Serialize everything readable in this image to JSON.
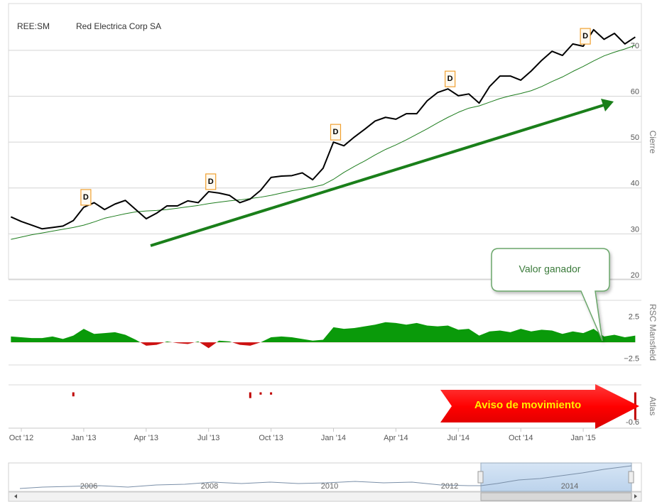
{
  "header": {
    "ticker": "REE:SM",
    "name": "Red Electrica Corp SA"
  },
  "annotations": [
    "Valor ganador",
    "Aviso de movimiento"
  ],
  "navigator": {
    "labels": [
      "2006",
      "2008",
      "2010",
      "2012",
      "2014"
    ]
  },
  "chart_data": [
    {
      "type": "line",
      "ylabel": "Cierre",
      "categories": [
        null,
        "Oct '12",
        null,
        null,
        null,
        null,
        null,
        "Jan '13",
        null,
        null,
        null,
        null,
        null,
        "Apr '13",
        null,
        null,
        null,
        null,
        null,
        "Jul '13",
        null,
        null,
        null,
        null,
        null,
        "Oct '13",
        null,
        null,
        null,
        null,
        null,
        "Jan '14",
        null,
        null,
        null,
        null,
        null,
        "Apr '14",
        null,
        null,
        null,
        null,
        null,
        "Jul '14",
        null,
        null,
        null,
        null,
        null,
        "Oct '14",
        null,
        null,
        null,
        null,
        null,
        "Jan '15",
        null,
        null,
        null,
        null,
        null
      ],
      "series": [
        {
          "color": "#000000",
          "values": [
            33.7,
            32.7,
            31.9,
            31.1,
            31.4,
            31.7,
            32.9,
            35.8,
            36.8,
            35.3,
            36.5,
            37.3,
            35.3,
            33.3,
            34.5,
            36.1,
            36.1,
            37.2,
            36.8,
            39.2,
            38.9,
            38.4,
            36.8,
            37.6,
            39.5,
            42.3,
            42.6,
            42.7,
            43.3,
            41.8,
            44.3,
            50.0,
            49.2,
            51.1,
            52.8,
            54.6,
            55.4,
            55.0,
            56.2,
            56.2,
            59.0,
            60.8,
            61.6,
            60.1,
            60.5,
            58.5,
            62.1,
            64.4,
            64.4,
            63.5,
            65.5,
            67.8,
            69.8,
            68.9,
            71.4,
            70.9,
            74.5,
            72.4,
            73.7,
            71.4,
            72.9
          ]
        },
        {
          "color": "#1e7d1e",
          "values": [
            28.8,
            29.3,
            29.8,
            30.2,
            30.6,
            31.0,
            31.4,
            31.9,
            32.6,
            33.4,
            33.9,
            34.4,
            34.8,
            35.0,
            35.1,
            35.3,
            35.6,
            35.9,
            36.2,
            36.6,
            36.9,
            37.2,
            37.4,
            37.7,
            38.0,
            38.4,
            38.9,
            39.4,
            39.8,
            40.2,
            40.7,
            41.9,
            43.4,
            44.7,
            45.9,
            47.2,
            48.4,
            49.4,
            50.5,
            51.7,
            52.9,
            54.2,
            55.4,
            56.5,
            57.4,
            57.9,
            58.7,
            59.5,
            60.1,
            60.6,
            61.2,
            62.1,
            63.2,
            64.2,
            65.4,
            66.5,
            67.7,
            68.8,
            69.6,
            70.3,
            71.1
          ]
        }
      ],
      "markers": {
        "label": "D",
        "indices": [
          7,
          19,
          31,
          42,
          55
        ],
        "color": "#f0a030"
      },
      "ylim": [
        20,
        80.2
      ],
      "yticks": [
        20,
        30,
        40,
        50,
        60,
        70
      ],
      "grid": true
    },
    {
      "type": "area",
      "ylabel": "RSC Mansfield",
      "values": [
        0.7,
        0.6,
        0.5,
        0.5,
        0.7,
        0.4,
        0.8,
        1.6,
        1.0,
        1.1,
        1.2,
        0.9,
        0.3,
        -0.4,
        -0.3,
        0.1,
        -0.1,
        -0.2,
        0.1,
        -0.7,
        0.2,
        0.1,
        -0.3,
        -0.4,
        0.0,
        0.6,
        0.7,
        0.6,
        0.4,
        0.2,
        0.3,
        1.8,
        1.6,
        1.7,
        1.9,
        2.1,
        2.4,
        2.3,
        2.1,
        2.3,
        2.0,
        1.9,
        2.0,
        1.5,
        1.6,
        0.8,
        1.3,
        1.4,
        1.2,
        1.6,
        1.3,
        1.5,
        1.4,
        1.0,
        1.3,
        1.1,
        1.6,
        0.7,
        0.9,
        0.6,
        0.8
      ],
      "positive_color": "#0a9a0a",
      "negative_color": "#cc1111",
      "ylim": [
        -2.7,
        5.0
      ],
      "yticks": [
        2.5,
        {
          "value": -2.5,
          "label": "−2.5"
        }
      ]
    },
    {
      "type": "bar",
      "ylabel": "Atlas",
      "values": [
        null,
        null,
        null,
        null,
        null,
        null,
        -0.07,
        null,
        null,
        null,
        null,
        null,
        null,
        null,
        null,
        null,
        null,
        null,
        null,
        null,
        null,
        null,
        null,
        -0.1,
        -0.04,
        -0.04,
        null,
        null,
        null,
        null,
        null,
        null,
        null,
        null,
        null,
        null,
        null,
        null,
        null,
        null,
        null,
        null,
        null,
        null,
        null,
        null,
        null,
        null,
        null,
        null,
        null,
        null,
        null,
        null,
        null,
        null,
        null,
        null,
        null,
        null,
        -0.48
      ],
      "color": "#c00000",
      "ylim": [
        -0.61,
        0.13
      ],
      "yticks": [
        -0.6
      ]
    }
  ]
}
